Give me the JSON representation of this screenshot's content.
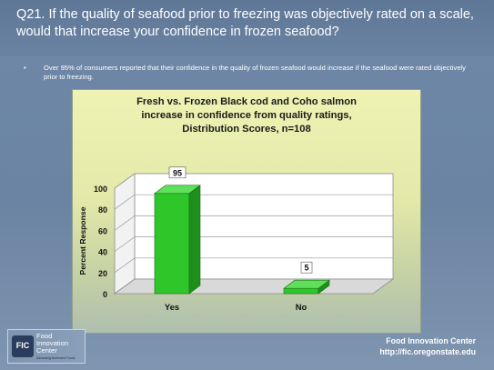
{
  "slide": {
    "title": "Q21. If the quality of seafood prior to freezing was objectively rated on a scale, would that increase your confidence in frozen seafood?",
    "bullet_mark": "•",
    "bullet": "Over 95% of consumers reported that their confidence in the quality of frozen seafood would increase if the seafood were rated objectively prior to freezing."
  },
  "chart_data": {
    "type": "bar",
    "title_lines": [
      "Fresh vs. Frozen Black cod and Coho salmon",
      "increase in confidence from quality ratings,",
      "Distribution Scores, n=108"
    ],
    "categories": [
      "Yes",
      "No"
    ],
    "values": [
      95,
      5
    ],
    "data_labels": [
      "95",
      "5"
    ],
    "ylabel": "Percent Response",
    "ylim": [
      0,
      100
    ],
    "yticks": [
      0,
      20,
      40,
      60,
      80,
      100
    ],
    "grid": true,
    "legend": "none",
    "bar_color": "#2fc62a",
    "bar_color_dark": "#1f8f1c"
  },
  "logo": {
    "badge": "FIC",
    "name": "Food Innovation Center",
    "tagline": "Advancing Northwest Foods"
  },
  "footer": {
    "line1": "Food Innovation Center",
    "line2": "http://fic.oregonstate.edu"
  }
}
